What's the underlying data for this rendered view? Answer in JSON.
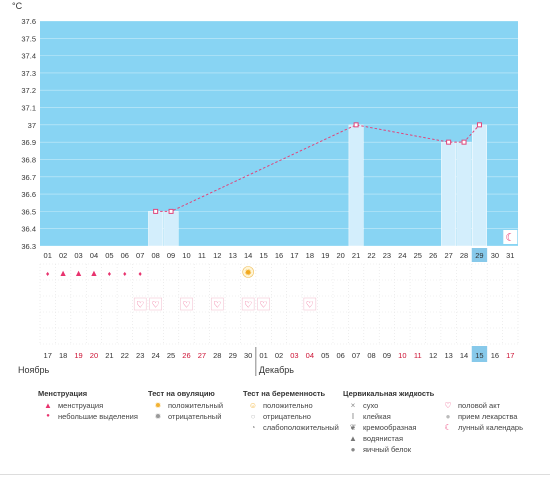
{
  "chart_data": {
    "type": "line",
    "unit": "°C",
    "ylim": [
      36.3,
      37.6
    ],
    "yticks": [
      "37.6",
      "37.5",
      "37.4",
      "37.3",
      "37.2",
      "37.1",
      "37",
      "36.9",
      "36.8",
      "36.7",
      "36.6",
      "36.5",
      "36.4",
      "36.3"
    ],
    "top_days": [
      "01",
      "02",
      "03",
      "04",
      "05",
      "06",
      "07",
      "08",
      "09",
      "10",
      "11",
      "12",
      "13",
      "14",
      "15",
      "16",
      "17",
      "18",
      "19",
      "20",
      "21",
      "22",
      "23",
      "24",
      "25",
      "26",
      "27",
      "28",
      "29",
      "30",
      "31"
    ],
    "bottom_days": [
      "17",
      "18",
      "19",
      "20",
      "21",
      "22",
      "23",
      "24",
      "25",
      "26",
      "27",
      "28",
      "29",
      "30",
      "01",
      "02",
      "03",
      "04",
      "05",
      "06",
      "07",
      "08",
      "09",
      "10",
      "11",
      "12",
      "13",
      "14",
      "15",
      "16",
      "17"
    ],
    "bottom_red": [
      2,
      3,
      9,
      10,
      16,
      17,
      23,
      24,
      30
    ],
    "highlight_index": 28,
    "months": [
      "Ноябрь",
      "Декабрь"
    ],
    "temperatures": [
      {
        "day": 7,
        "value": 36.5
      },
      {
        "day": 8,
        "value": 36.5
      },
      {
        "day": 20,
        "value": 37.0
      },
      {
        "day": 26,
        "value": 36.9
      },
      {
        "day": 27,
        "value": 36.9
      },
      {
        "day": 28,
        "value": 37.0
      }
    ],
    "menstruation_days": [
      0,
      1,
      2,
      3,
      4,
      5,
      6
    ],
    "menstruation_big": [
      1,
      2,
      3
    ],
    "ovulation_positive_days": [
      13
    ],
    "intercourse_days": [
      6,
      7,
      9,
      11,
      13,
      14,
      17
    ],
    "moon_day": 30
  },
  "legend": {
    "menstruation": {
      "title": "Менструация",
      "items": [
        "менструация",
        "небольшие выделения"
      ]
    },
    "ovulation": {
      "title": "Тест на овуляцию",
      "items": [
        "положительный",
        "отрицательный"
      ]
    },
    "pregnancy": {
      "title": "Тест на беременность",
      "items": [
        "положительно",
        "отрицательно",
        "слабоположительный"
      ]
    },
    "cervical": {
      "title": "Цервикальная жидкость",
      "items": [
        "сухо",
        "клейкая",
        "кремообразная",
        "водянистая",
        "яичный белок"
      ]
    },
    "other": {
      "items": [
        "половой акт",
        "прием лекарства",
        "лунный календарь"
      ]
    }
  },
  "colors": {
    "plot_bg": "#88d4f3",
    "bar": "#d3eefc",
    "line": "#e0457b",
    "highlight": "#87c9ea",
    "red_text": "#cc1133"
  },
  "icons": {
    "menstruation": "drop-icon",
    "ovulation_positive": "sun-icon",
    "intercourse": "heart-icon",
    "moon": "crescent-moon-icon"
  }
}
